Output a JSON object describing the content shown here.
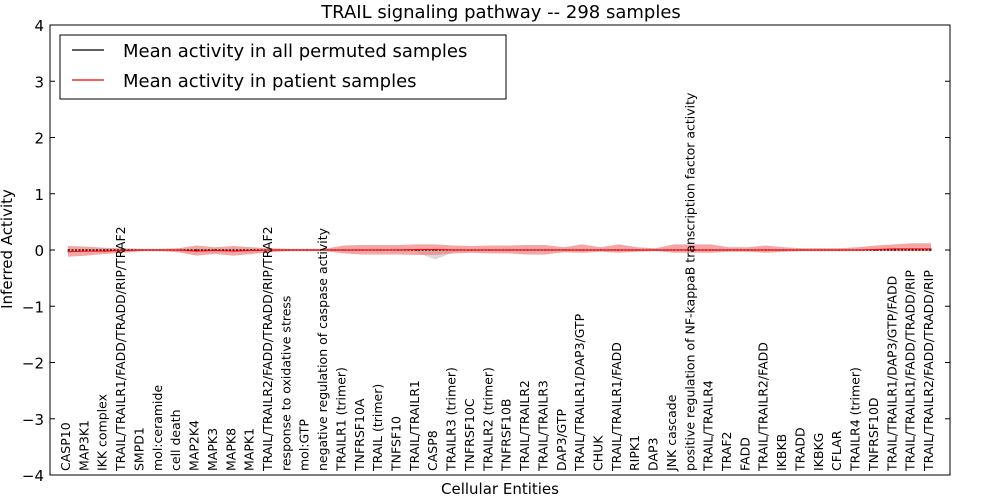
{
  "chart_data": {
    "type": "line",
    "title": "TRAIL signaling pathway -- 298 samples",
    "xlabel": "Cellular Entities",
    "ylabel": "Inferred Activity",
    "ylim": [
      -4,
      4
    ],
    "yticks": [
      4,
      3,
      2,
      1,
      0,
      -1,
      -2,
      -3,
      -4
    ],
    "ytick_labels": [
      "4",
      "3",
      "2",
      "1",
      "0",
      "−1",
      "−2",
      "−3",
      "−4"
    ],
    "legend_position": "top-left",
    "categories": [
      "CASP10",
      "MAP3K1",
      "IKK complex",
      "TRAIL/TRAILR1/FADD/TRADD/RIP/TRAF2",
      "SMPD1",
      "mol:ceramide",
      "cell death",
      "MAP2K4",
      "MAPK3",
      "MAPK8",
      "MAPK1",
      "TRAIL/TRAILR2/FADD/TRADD/RIP/TRAF2",
      "response to oxidative stress",
      "mol:GTP",
      "negative regulation of caspase activity",
      "TRAILR1 (trimer)",
      "TNFRSF10A",
      "TRAIL (trimer)",
      "TNFSF10",
      "TRAIL/TRAILR1",
      "CASP8",
      "TRAILR3 (trimer)",
      "TNFRSF10C",
      "TRAILR2 (trimer)",
      "TNFRSF10B",
      "TRAIL/TRAILR2",
      "TRAIL/TRAILR3",
      "DAP3/GTP",
      "TRAIL/TRAILR1/DAP3/GTP",
      "CHUK",
      "TRAIL/TRAILR1/FADD",
      "RIPK1",
      "DAP3",
      "JNK cascade",
      "positive regulation of NF-kappaB transcription factor activity",
      "TRAIL/TRAILR4",
      "TRAF2",
      "FADD",
      "TRAIL/TRAILR2/FADD",
      "IKBKB",
      "TRADD",
      "IKBKG",
      "CFLAR",
      "TRAILR4 (trimer)",
      "TNFRSF10D",
      "TRAIL/TRAILR1/DAP3/GTP/FADD",
      "TRAIL/TRAILR1/FADD/TRADD/RIP",
      "TRAIL/TRAILR2/FADD/TRADD/RIP"
    ],
    "series": [
      {
        "name": "Mean activity in all permuted samples",
        "color": "#000000",
        "values": [
          0,
          0,
          0,
          0,
          0,
          0,
          0,
          0,
          0,
          0,
          0,
          0,
          0,
          0,
          0,
          0,
          0,
          0,
          0,
          0,
          0,
          0,
          0,
          0,
          0,
          0,
          0,
          0,
          0,
          0,
          0,
          0,
          0,
          0,
          0,
          0,
          0,
          0,
          0,
          0,
          0,
          0,
          0,
          0,
          0,
          0,
          0,
          0
        ],
        "band_upper": [
          0.02,
          0.02,
          0.02,
          0.02,
          0.02,
          0.02,
          0.02,
          0.02,
          0.02,
          0.02,
          0.02,
          0.02,
          0.02,
          0.02,
          0.02,
          0.02,
          0.02,
          0.02,
          0.02,
          0.02,
          0.03,
          0.02,
          0.02,
          0.02,
          0.02,
          0.02,
          0.02,
          0.02,
          0.02,
          0.02,
          0.02,
          0.02,
          0.02,
          0.02,
          0.02,
          0.02,
          0.02,
          0.02,
          0.02,
          0.02,
          0.02,
          0.02,
          0.02,
          0.02,
          0.02,
          0.02,
          0.02,
          0.02
        ],
        "band_lower": [
          -0.02,
          -0.02,
          -0.02,
          -0.02,
          -0.02,
          -0.02,
          -0.02,
          -0.02,
          -0.02,
          -0.02,
          -0.02,
          -0.02,
          -0.02,
          -0.02,
          -0.02,
          -0.02,
          -0.02,
          -0.02,
          -0.02,
          -0.04,
          -0.17,
          -0.04,
          -0.02,
          -0.02,
          -0.02,
          -0.02,
          -0.02,
          -0.02,
          -0.02,
          -0.02,
          -0.02,
          -0.02,
          -0.02,
          -0.02,
          -0.02,
          -0.02,
          -0.02,
          -0.02,
          -0.02,
          -0.02,
          -0.02,
          -0.02,
          -0.02,
          -0.02,
          -0.02,
          -0.02,
          -0.02,
          -0.02
        ]
      },
      {
        "name": "Mean activity in patient samples",
        "color": "#ff0000",
        "band_color": "#f08080",
        "values": [
          -0.03,
          -0.02,
          -0.02,
          -0.01,
          0,
          0,
          0,
          -0.02,
          -0.01,
          -0.02,
          -0.01,
          0,
          0,
          0,
          0,
          0,
          0,
          0,
          0,
          0.01,
          0.01,
          0,
          0,
          0,
          0,
          0,
          0,
          0,
          0,
          0,
          0,
          0,
          0,
          0,
          0,
          0,
          0,
          0,
          0,
          0,
          0,
          0,
          0,
          0,
          0.01,
          0.02,
          0.02,
          0.02
        ],
        "band_upper": [
          0.07,
          0.06,
          0.04,
          0.03,
          0.02,
          0.02,
          0.03,
          0.08,
          0.05,
          0.07,
          0.05,
          0.03,
          0.02,
          0.02,
          0.02,
          0.08,
          0.09,
          0.09,
          0.09,
          0.1,
          0.1,
          0.08,
          0.07,
          0.08,
          0.08,
          0.09,
          0.09,
          0.05,
          0.1,
          0.05,
          0.1,
          0.05,
          0.03,
          0.1,
          0.1,
          0.1,
          0.05,
          0.05,
          0.08,
          0.05,
          0.03,
          0.03,
          0.03,
          0.05,
          0.08,
          0.1,
          0.12,
          0.12
        ],
        "band_lower": [
          -0.12,
          -0.1,
          -0.07,
          -0.05,
          -0.02,
          -0.02,
          -0.04,
          -0.1,
          -0.07,
          -0.1,
          -0.07,
          -0.04,
          -0.02,
          -0.02,
          -0.02,
          -0.06,
          -0.08,
          -0.08,
          -0.08,
          -0.09,
          -0.09,
          -0.06,
          -0.05,
          -0.06,
          -0.06,
          -0.08,
          -0.08,
          -0.04,
          -0.05,
          -0.03,
          -0.05,
          -0.03,
          -0.02,
          -0.05,
          -0.05,
          -0.05,
          -0.03,
          -0.03,
          -0.05,
          -0.03,
          -0.02,
          -0.02,
          -0.02,
          -0.02,
          -0.02,
          -0.02,
          -0.02,
          -0.02
        ]
      }
    ]
  }
}
